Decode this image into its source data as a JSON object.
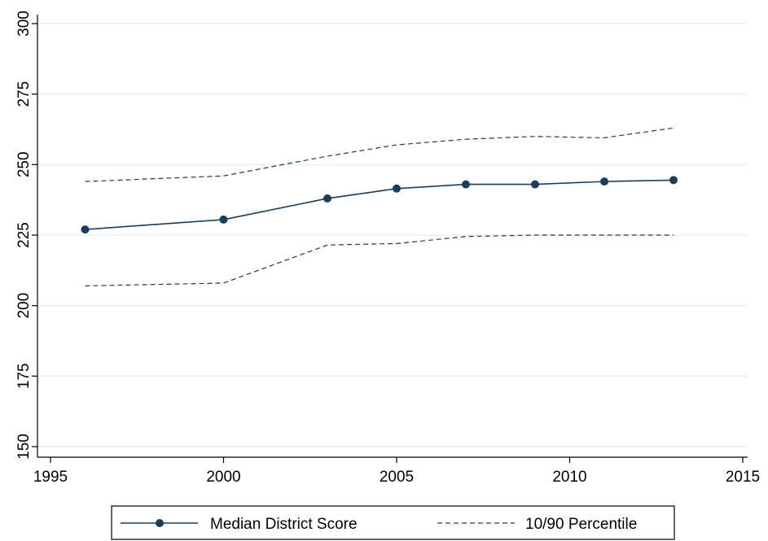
{
  "chart_data": {
    "type": "line",
    "x": [
      1996,
      2000,
      2003,
      2005,
      2007,
      2009,
      2011,
      2013
    ],
    "series": [
      {
        "name": "Median District Score",
        "style": "solid-markers",
        "values": [
          227,
          230.5,
          238,
          241.5,
          243,
          243,
          244,
          244.5
        ]
      },
      {
        "name": "10/90 Percentile",
        "style": "dashed",
        "values": [
          244,
          246,
          253,
          257,
          259,
          260,
          259.5,
          263
        ]
      },
      {
        "name": "",
        "style": "dashed",
        "values": [
          207,
          208,
          221.5,
          222,
          224.5,
          225,
          225,
          225
        ]
      }
    ],
    "xlim": [
      1995,
      2015
    ],
    "ylim": [
      150,
      300
    ],
    "x_ticks": [
      "1995",
      "2000",
      "2005",
      "2010",
      "2015"
    ],
    "y_ticks": [
      "150",
      "175",
      "200",
      "225",
      "250",
      "275",
      "300"
    ],
    "legend": {
      "placement": "bottom",
      "entries": [
        "Median District Score",
        "10/90 Percentile"
      ]
    },
    "grid": "horizontal",
    "colors": {
      "line": "#1a3d5c",
      "grid": "#e8eef3",
      "axis": "#000000"
    }
  }
}
